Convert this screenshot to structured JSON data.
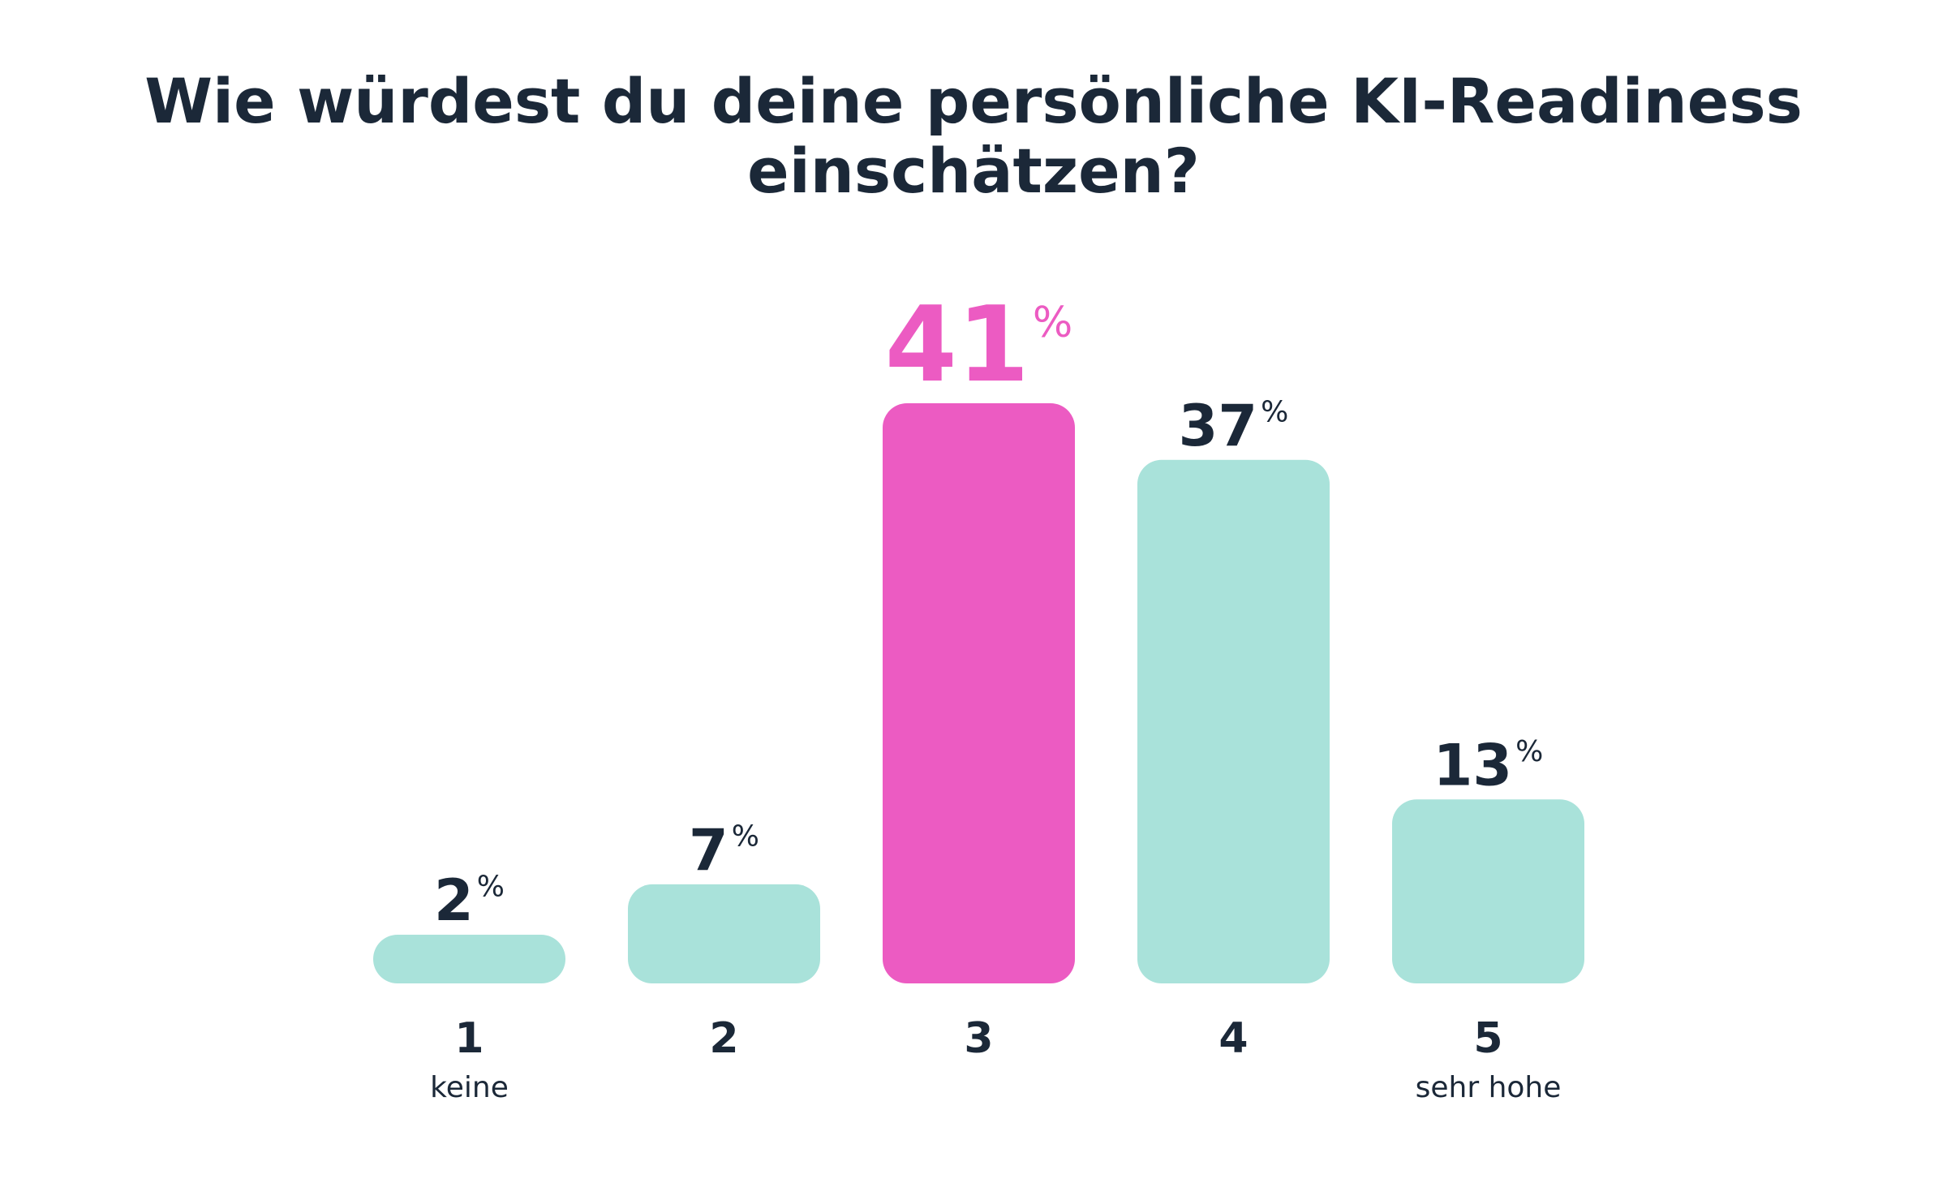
{
  "chart_data": {
    "type": "bar",
    "title": [
      "Wie würdest du deine persönliche KI-Readiness",
      "einschätzen?"
    ],
    "categories": [
      "1",
      "2",
      "3",
      "4",
      "5"
    ],
    "category_sublabels": [
      "keine",
      "",
      "",
      "",
      "sehr hohe"
    ],
    "values": [
      2,
      7,
      41,
      37,
      13
    ],
    "value_suffix": "%",
    "highlight_index": 2,
    "xlabel": "",
    "ylabel": "",
    "ylim": [
      0,
      41
    ],
    "grid": false,
    "colors": {
      "bar": "#a9e2da",
      "highlight": "#ec5bc2",
      "text": "#1b2838"
    }
  }
}
